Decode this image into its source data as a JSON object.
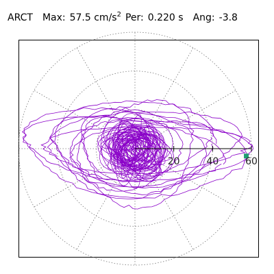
{
  "header": {
    "station": "ARCT",
    "max_label": "Max:",
    "max_value": "57.5 cm/s",
    "max_unit_power": "2",
    "per_label": "Per:",
    "per_value": "0.220 s",
    "ang_label": "Ang:",
    "ang_value": "-3.8"
  },
  "chart_data": {
    "type": "polar-orbit",
    "title": "",
    "radial_ticks": [
      20,
      40,
      60
    ],
    "radial_max": 60,
    "radial_grid_values": [
      20,
      40,
      60
    ],
    "angular_grid_step_deg": 30,
    "grid": true,
    "grid_style": "dotted",
    "max_amplitude": 57.5,
    "peak_angle_deg": -3.8,
    "peak_marker_color": "#1e9e72",
    "trace_color": "#8a00c8",
    "axis_color": "#000000",
    "orbit_ellipses": [
      {
        "a": 58,
        "b": 16,
        "rot": -3
      },
      {
        "a": 56,
        "b": 22,
        "rot": -5
      },
      {
        "a": 48,
        "b": 19,
        "rot": 4
      },
      {
        "a": 44,
        "b": 17,
        "rot": -8
      },
      {
        "a": 40,
        "b": 25,
        "rot": 2
      },
      {
        "a": 36,
        "b": 14,
        "rot": 10
      },
      {
        "a": 32,
        "b": 21,
        "rot": -12
      },
      {
        "a": 28,
        "b": 18,
        "rot": 6
      },
      {
        "a": 24,
        "b": 15,
        "rot": -20
      },
      {
        "a": 52,
        "b": 12,
        "rot": 1
      },
      {
        "a": 30,
        "b": 26,
        "rot": 30
      }
    ]
  }
}
